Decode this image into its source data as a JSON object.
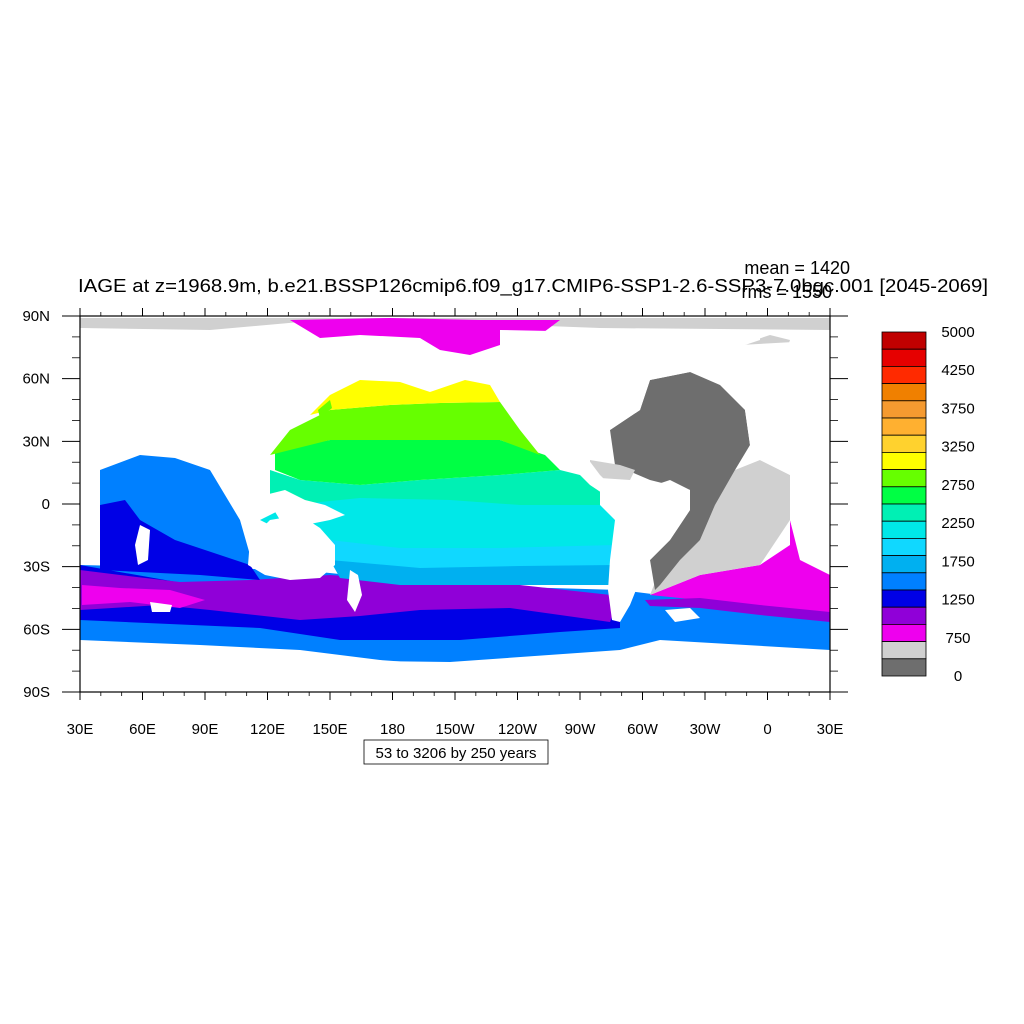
{
  "title": "IAGE at z=1968.9m, b.e21.BSSP126cmip6.f09_g17.CMIP6-SSP1-2.6-SSP3-7.0bgc.001 [2045-2069]",
  "stats": {
    "mean": "mean = 1420",
    "rms": "rms = 1550"
  },
  "contour_info": "53 to 3206 by 250 years",
  "chart_data": {
    "type": "heatmap",
    "title": "IAGE at z=1968.9m, b.e21.BSSP126cmip6.f09_g17.CMIP6-SSP1-2.6-SSP3-7.0bgc.001 [2045-2069]",
    "variable": "IAGE",
    "depth": "z=1968.9m",
    "period": "2045-2069",
    "units": "years",
    "mean": 1420,
    "rms": 1550,
    "x_ticks": [
      "30E",
      "60E",
      "90E",
      "120E",
      "150E",
      "180",
      "150W",
      "120W",
      "90W",
      "60W",
      "30W",
      "0",
      "30E"
    ],
    "x_tick_values": [
      30,
      60,
      90,
      120,
      150,
      180,
      210,
      240,
      270,
      300,
      330,
      360,
      390
    ],
    "y_ticks": [
      "90N",
      "60N",
      "30N",
      "0",
      "30S",
      "60S",
      "90S"
    ],
    "y_tick_values": [
      90,
      60,
      30,
      0,
      -30,
      -60,
      -90
    ],
    "xlim": [
      30,
      390
    ],
    "ylim": [
      -90,
      90
    ],
    "colorbar": {
      "labels": [
        "5000",
        "4250",
        "3750",
        "3250",
        "2750",
        "2250",
        "1750",
        "1250",
        "750",
        "0"
      ],
      "colors": [
        "#c00000",
        "#e60000",
        "#ff2a00",
        "#f08000",
        "#f59a30",
        "#ffb030",
        "#ffd22e",
        "#ffff00",
        "#66ff00",
        "#00ff44",
        "#00f0b4",
        "#00e8e8",
        "#10d8ff",
        "#00b0f0",
        "#0080ff",
        "#0000e6",
        "#9000d8",
        "#ee00ee",
        "#d0d0d0",
        "#6e6e6e"
      ]
    },
    "fill_colors": {
      "land_mask": "#ffffff",
      "sea_ice_light": "#d0d0d0",
      "atlantic_dark": "#6e6e6e"
    }
  }
}
